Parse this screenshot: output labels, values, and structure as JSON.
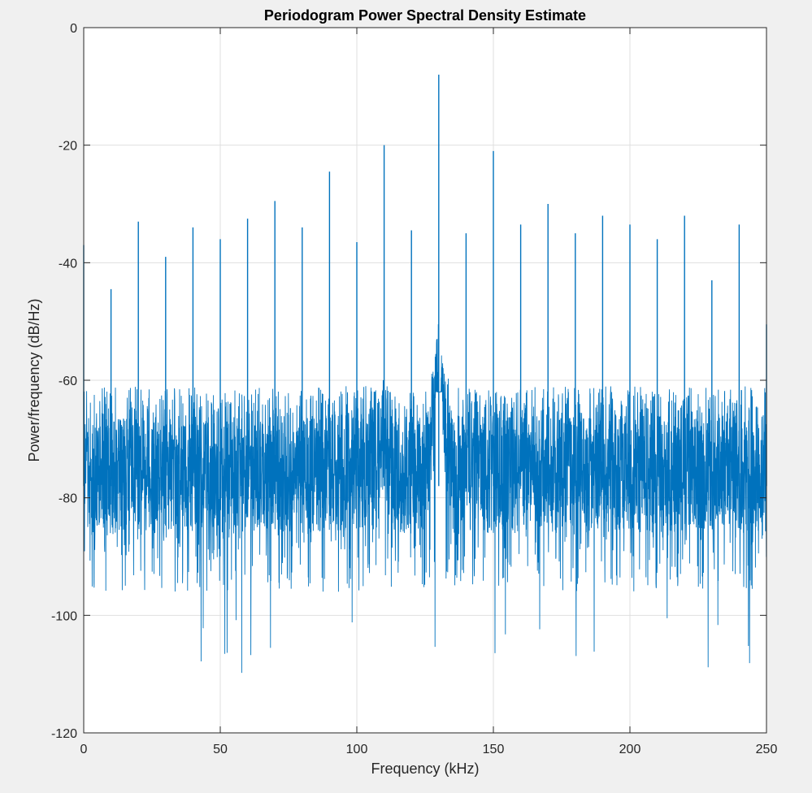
{
  "chart_data": {
    "type": "line",
    "title": "Periodogram Power Spectral Density Estimate",
    "xlabel": "Frequency (kHz)",
    "ylabel": "Power/frequency (dB/Hz)",
    "xlim": [
      0,
      250
    ],
    "ylim": [
      -120,
      0
    ],
    "xticks": [
      0,
      50,
      100,
      150,
      200,
      250
    ],
    "yticks": [
      0,
      -20,
      -40,
      -60,
      -80,
      -100,
      -120
    ],
    "xtick_labels": [
      "0",
      "50",
      "100",
      "150",
      "200",
      "250"
    ],
    "ytick_labels": [
      "0",
      "-20",
      "-40",
      "-60",
      "-80",
      "-100",
      "-120"
    ],
    "grid": true,
    "line_color": "#0072BD",
    "noise_floor": {
      "band_top": -66,
      "band_bottom": -86,
      "typical_min": -96,
      "deepest_min": -110
    },
    "peaks": [
      {
        "x": 0,
        "y": -37
      },
      {
        "x": 10,
        "y": -44.5
      },
      {
        "x": 20,
        "y": -33
      },
      {
        "x": 30,
        "y": -39
      },
      {
        "x": 40,
        "y": -34
      },
      {
        "x": 50,
        "y": -36
      },
      {
        "x": 60,
        "y": -32.5
      },
      {
        "x": 70,
        "y": -29.5
      },
      {
        "x": 80,
        "y": -34
      },
      {
        "x": 90,
        "y": -24.5
      },
      {
        "x": 100,
        "y": -36.5
      },
      {
        "x": 110,
        "y": -20
      },
      {
        "x": 120,
        "y": -34.5
      },
      {
        "x": 130,
        "y": -8
      },
      {
        "x": 140,
        "y": -35
      },
      {
        "x": 150,
        "y": -21
      },
      {
        "x": 160,
        "y": -33.5
      },
      {
        "x": 170,
        "y": -30
      },
      {
        "x": 180,
        "y": -35
      },
      {
        "x": 190,
        "y": -32
      },
      {
        "x": 200,
        "y": -33.5
      },
      {
        "x": 210,
        "y": -36
      },
      {
        "x": 220,
        "y": -32
      },
      {
        "x": 230,
        "y": -43
      },
      {
        "x": 240,
        "y": -33.5
      },
      {
        "x": 250,
        "y": -50.5
      }
    ]
  }
}
